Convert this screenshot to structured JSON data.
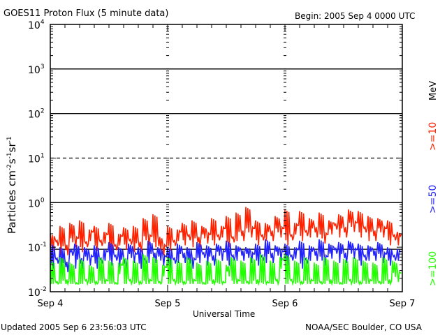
{
  "chart_data": {
    "type": "line",
    "title": "GOES11 Proton Flux (5 minute data)",
    "subtitle": "Begin: 2005 Sep 4 0000 UTC",
    "xlabel": "Universal Time",
    "ylabel": "Particles cm",
    "ylabel_parts": [
      "Particles cm",
      "-2",
      "s",
      "-1",
      "sr",
      "-1"
    ],
    "yscale": "log",
    "ylim": [
      0.01,
      10000
    ],
    "yticks": [
      {
        "base": "10",
        "exp": "4"
      },
      {
        "base": "10",
        "exp": "3"
      },
      {
        "base": "10",
        "exp": "2"
      },
      {
        "base": "10",
        "exp": "1"
      },
      {
        "base": "10",
        "exp": "0"
      },
      {
        "base": "10",
        "exp": "-1"
      },
      {
        "base": "10",
        "exp": "-2"
      }
    ],
    "xlim_hours": [
      0,
      72
    ],
    "xticks": [
      {
        "label": "Sep 4",
        "hour": 0
      },
      {
        "label": "Sep 5",
        "hour": 24
      },
      {
        "label": "Sep 6",
        "hour": 48
      },
      {
        "label": "Sep 7",
        "hour": 72
      }
    ],
    "threshold_lines": {
      "solid": [
        1000,
        100,
        1,
        0.09
      ],
      "dashed": [
        10
      ]
    },
    "legend": {
      "unit": "MeV",
      "placement": "right"
    },
    "series": [
      {
        "name": ">=10",
        "color": "#ff2200",
        "values": [
          0.2,
          0.15,
          0.3,
          0.12,
          0.35,
          0.18,
          0.4,
          0.14,
          0.25,
          0.3,
          0.15,
          0.22,
          0.35,
          0.12,
          0.2,
          0.28,
          0.16,
          0.3,
          0.14,
          0.45,
          0.2,
          0.55,
          0.18,
          0.12,
          0.3,
          0.15,
          0.25,
          0.35,
          0.2,
          0.4,
          0.18,
          0.3,
          0.22,
          0.45,
          0.2,
          0.3,
          0.5,
          0.18,
          0.6,
          0.25,
          0.8,
          0.3,
          0.4,
          0.2,
          0.35,
          0.25,
          0.5,
          0.3,
          0.7,
          0.2,
          0.35,
          0.65,
          0.25,
          0.45,
          0.3,
          0.6,
          0.22,
          0.4,
          0.35,
          0.55,
          0.3,
          0.7,
          0.4,
          0.65,
          0.3,
          0.5,
          0.25,
          0.45,
          0.3,
          0.4,
          0.2,
          0.22
        ]
      },
      {
        "name": ">=50",
        "color": "#2222ff",
        "values": [
          0.12,
          0.06,
          0.1,
          0.05,
          0.09,
          0.12,
          0.06,
          0.1,
          0.07,
          0.11,
          0.06,
          0.09,
          0.13,
          0.07,
          0.1,
          0.06,
          0.12,
          0.08,
          0.1,
          0.06,
          0.14,
          0.08,
          0.1,
          0.07,
          0.1,
          0.06,
          0.12,
          0.08,
          0.1,
          0.06,
          0.13,
          0.08,
          0.11,
          0.07,
          0.12,
          0.09,
          0.14,
          0.07,
          0.11,
          0.09,
          0.1,
          0.08,
          0.12,
          0.07,
          0.15,
          0.08,
          0.11,
          0.09,
          0.12,
          0.07,
          0.1,
          0.14,
          0.06,
          0.11,
          0.09,
          0.15,
          0.07,
          0.12,
          0.1,
          0.13,
          0.08,
          0.14,
          0.1,
          0.12,
          0.07,
          0.11,
          0.09,
          0.13,
          0.08,
          0.1,
          0.07,
          0.09
        ]
      },
      {
        "name": ">=100",
        "color": "#22ff00",
        "values": [
          0.05,
          0.018,
          0.06,
          0.02,
          0.045,
          0.017,
          0.055,
          0.02,
          0.04,
          0.018,
          0.06,
          0.02,
          0.05,
          0.017,
          0.045,
          0.06,
          0.02,
          0.05,
          0.018,
          0.07,
          0.02,
          0.06,
          0.018,
          0.04,
          0.06,
          0.02,
          0.05,
          0.018,
          0.06,
          0.02,
          0.045,
          0.017,
          0.05,
          0.02,
          0.055,
          0.018,
          0.04,
          0.06,
          0.02,
          0.05,
          0.018,
          0.06,
          0.02,
          0.07,
          0.018,
          0.05,
          0.02,
          0.06,
          0.07,
          0.02,
          0.05,
          0.018,
          0.06,
          0.02,
          0.045,
          0.018,
          0.06,
          0.02,
          0.05,
          0.017,
          0.055,
          0.02,
          0.06,
          0.018,
          0.05,
          0.02,
          0.045,
          0.018,
          0.06,
          0.02,
          0.05,
          0.03
        ]
      }
    ]
  },
  "footer": {
    "updated": "Updated 2005 Sep  6 23:56:03 UTC",
    "credit": "NOAA/SEC Boulder, CO USA"
  }
}
